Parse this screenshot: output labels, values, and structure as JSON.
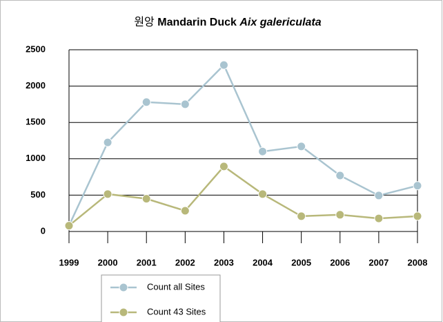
{
  "chart_data": {
    "type": "line",
    "title": [
      "원앙",
      "Mandarin Duck",
      "Aix galericulata"
    ],
    "categories": [
      "1999",
      "2000",
      "2001",
      "2002",
      "2003",
      "2004",
      "2005",
      "2006",
      "2007",
      "2008"
    ],
    "series": [
      {
        "name": "Count all Sites",
        "color": "#a9c4d0",
        "values": [
          80,
          1225,
          1780,
          1750,
          2290,
          1100,
          1170,
          770,
          495,
          630
        ]
      },
      {
        "name": "Count 43 Sites",
        "color": "#b8b87a",
        "values": [
          80,
          515,
          450,
          285,
          895,
          515,
          210,
          230,
          180,
          210
        ]
      }
    ],
    "ylim": [
      0,
      2500
    ],
    "yticks": [
      0,
      500,
      1000,
      1500,
      2000,
      2500
    ],
    "grid": true
  }
}
